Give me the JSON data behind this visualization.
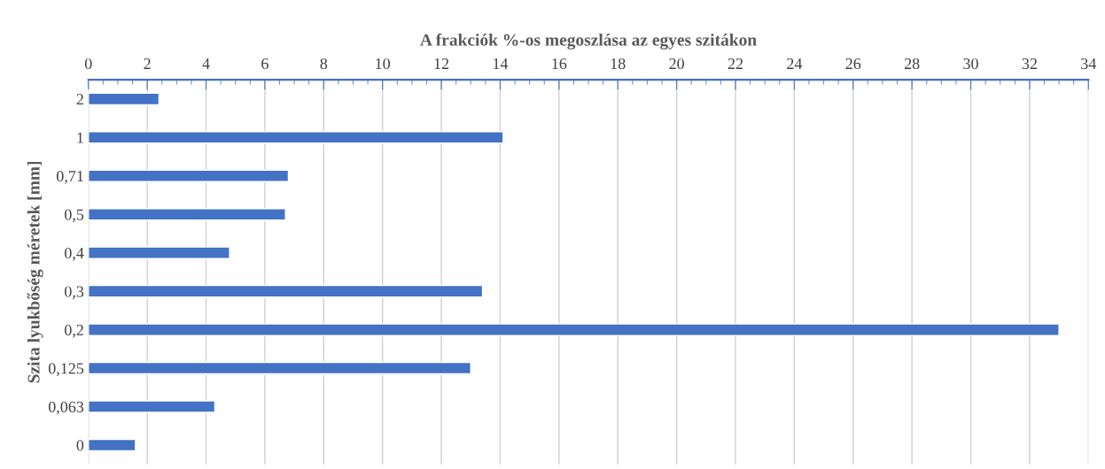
{
  "chart_data": {
    "type": "bar",
    "orientation": "horizontal",
    "xlabel": "A frakciók %-os megoszlása az egyes szitákon",
    "ylabel": "Szita lyukbőség méretek [mm]",
    "categories": [
      "2",
      "1",
      "0,71",
      "0,5",
      "0,4",
      "0,3",
      "0,2",
      "0,125",
      "0,063",
      "0"
    ],
    "values": [
      2.4,
      14.1,
      6.8,
      6.7,
      4.8,
      13.4,
      33.0,
      13.0,
      4.3,
      1.6
    ],
    "color": "#4472c4",
    "xlim": [
      0,
      34
    ],
    "xticks": [
      0,
      {
        "value": 0.5,
        "label": null
      },
      {
        "value": 1,
        "label": null
      },
      {
        "value": 1.5,
        "label": null
      },
      2,
      {
        "value": 2.5,
        "label": null
      },
      {
        "value": 3,
        "label": null
      },
      {
        "value": 3.5,
        "label": null
      },
      4,
      {
        "value": 4.5,
        "label": null
      },
      {
        "value": 5,
        "label": null
      },
      {
        "value": 5.5,
        "label": null
      },
      6,
      {
        "value": 6.5,
        "label": null
      },
      {
        "value": 7,
        "label": null
      },
      {
        "value": 7.5,
        "label": null
      },
      8,
      {
        "value": 8.5,
        "label": null
      },
      {
        "value": 9,
        "label": null
      },
      {
        "value": 9.5,
        "label": null
      },
      10,
      {
        "value": 10.5,
        "label": null
      },
      {
        "value": 11,
        "label": null
      },
      {
        "value": 11.5,
        "label": null
      },
      12,
      {
        "value": 12.5,
        "label": null
      },
      {
        "value": 13,
        "label": null
      },
      {
        "value": 13.5,
        "label": null
      },
      14,
      {
        "value": 14.5,
        "label": null
      },
      {
        "value": 15,
        "label": null
      },
      {
        "value": 15.5,
        "label": null
      },
      16,
      {
        "value": 16.5,
        "label": null
      },
      {
        "value": 17,
        "label": null
      },
      {
        "value": 17.5,
        "label": null
      },
      18,
      {
        "value": 18.5,
        "label": null
      },
      {
        "value": 19,
        "label": null
      },
      {
        "value": 19.5,
        "label": null
      },
      20,
      {
        "value": 20.5,
        "label": null
      },
      {
        "value": 21,
        "label": null
      },
      {
        "value": 21.5,
        "label": null
      },
      22,
      {
        "value": 22.5,
        "label": null
      },
      {
        "value": 23,
        "label": null
      },
      {
        "value": 23.5,
        "label": null
      },
      24,
      {
        "value": 24.5,
        "label": null
      },
      {
        "value": 25,
        "label": null
      },
      {
        "value": 25.5,
        "label": null
      },
      26,
      {
        "value": 26.5,
        "label": null
      },
      {
        "value": 27,
        "label": null
      },
      {
        "value": 27.5,
        "label": null
      },
      28,
      {
        "value": 28.5,
        "label": null
      },
      {
        "value": 29,
        "label": null
      },
      {
        "value": 29.5,
        "label": null
      },
      30,
      {
        "value": 30.5,
        "label": null
      },
      {
        "value": 31,
        "label": null
      },
      {
        "value": 31.5,
        "label": null
      },
      32,
      {
        "value": 32.5,
        "label": null
      },
      {
        "value": 33,
        "label": null
      },
      {
        "value": 33.5,
        "label": null
      },
      34
    ],
    "grid": "x"
  }
}
